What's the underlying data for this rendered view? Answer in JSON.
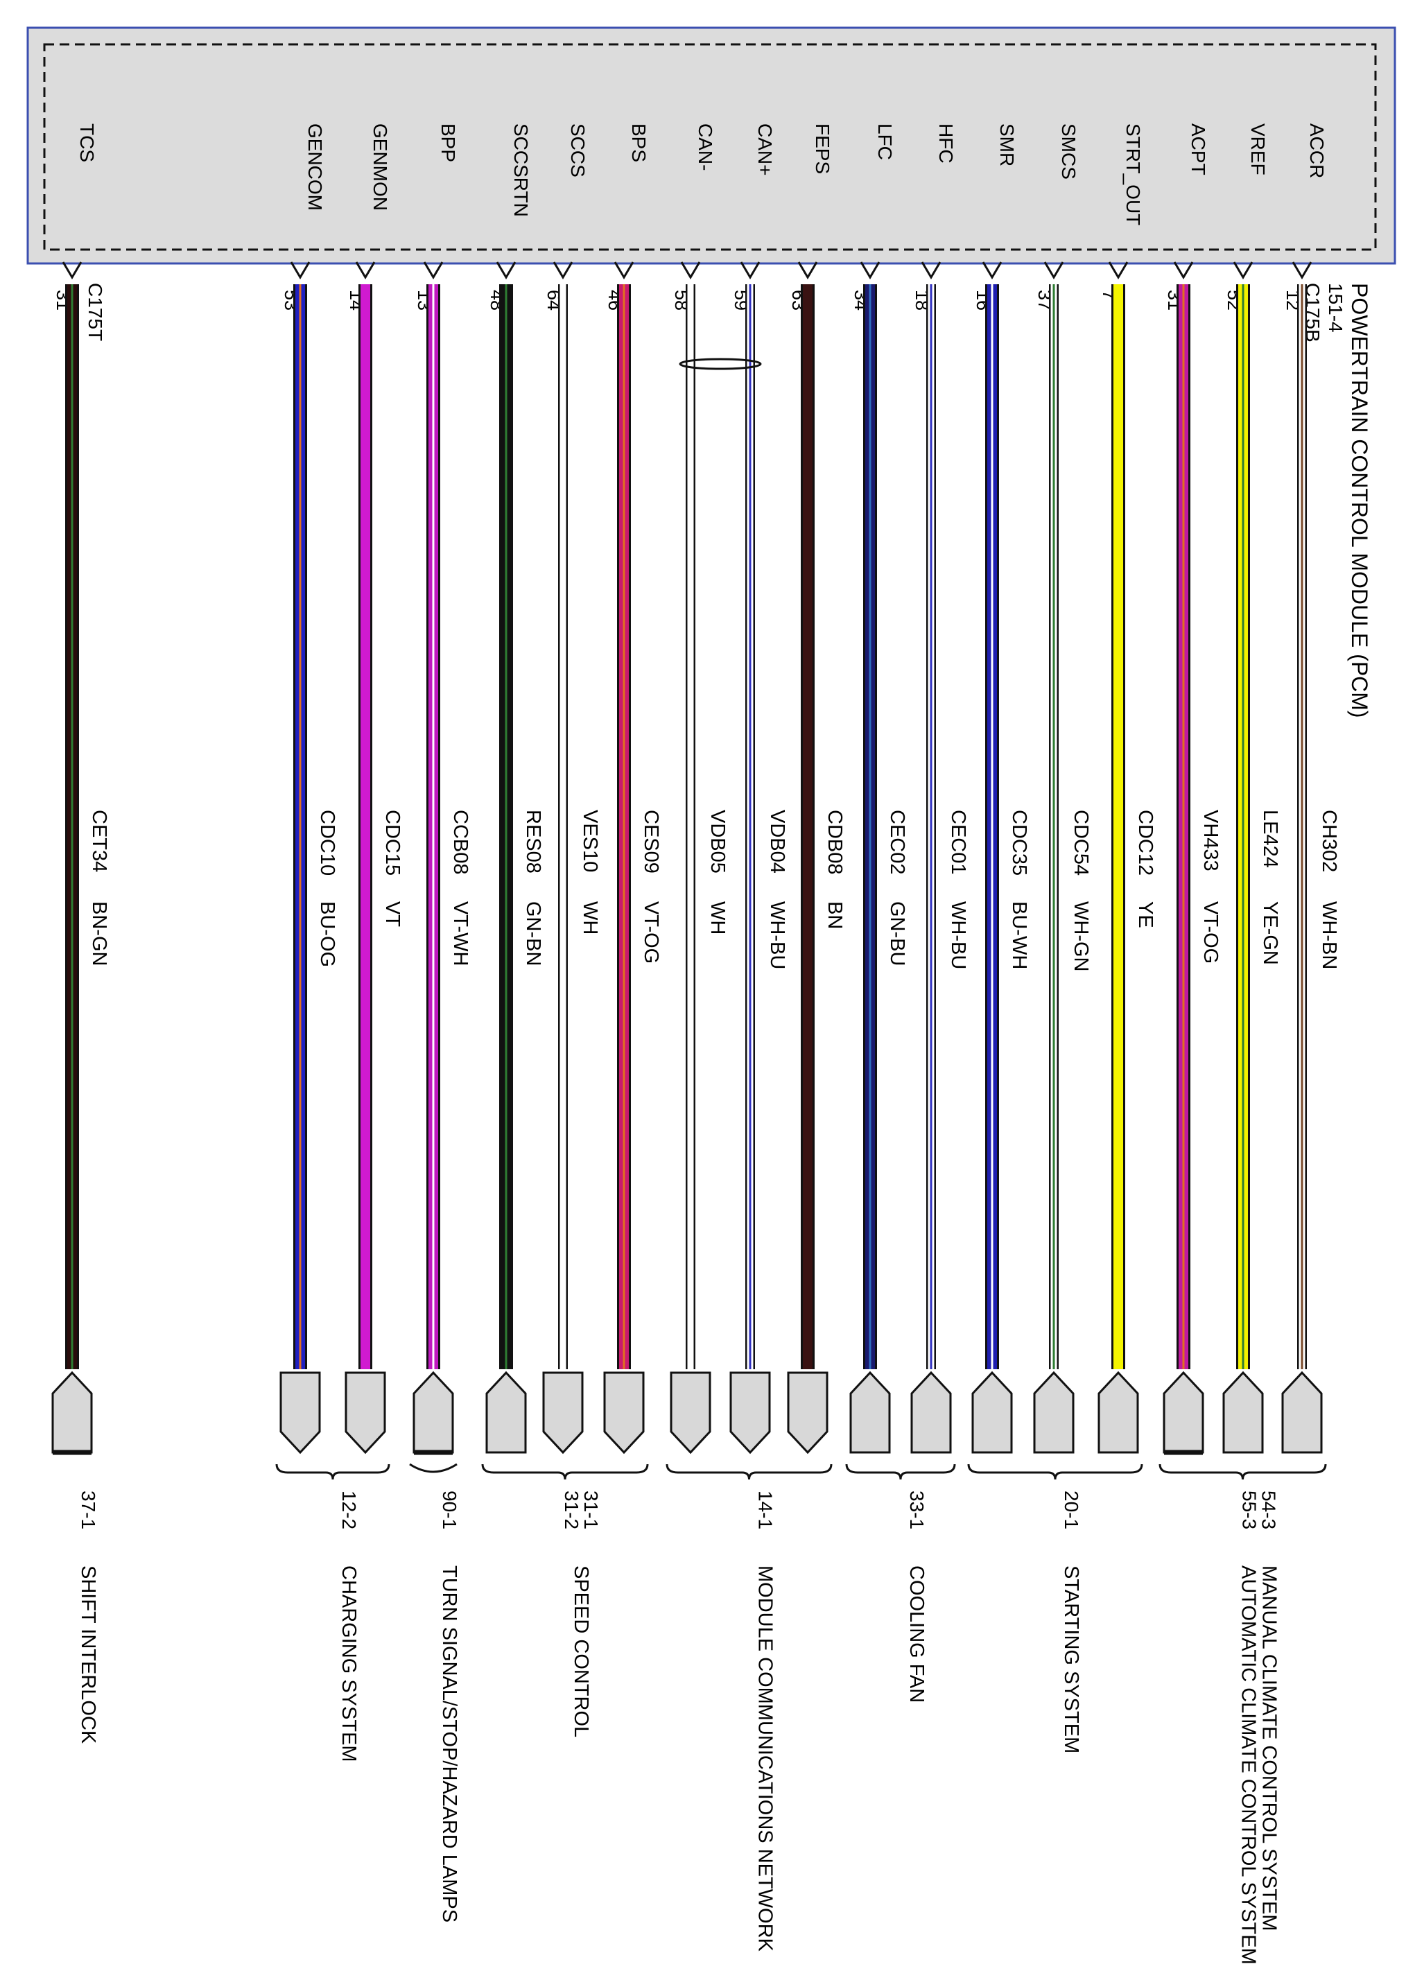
{
  "module": {
    "lines": [
      "POWERTRAIN CONTROL MODULE (PCM)",
      "151-4",
      "C175B"
    ],
    "left_connector": "C175T"
  },
  "wires": [
    {
      "pin": "ACCR",
      "pin_no": "12",
      "circuit": "CH302",
      "color_code": "WH-BN",
      "stroke": "#ffffff",
      "stripe": "#7a4a2a",
      "connector_style": "point"
    },
    {
      "pin": "VREF",
      "pin_no": "52",
      "circuit": "LE424",
      "color_code": "YE-GN",
      "stroke": "#f2f200",
      "stripe": "#2e7d32",
      "connector_style": "point"
    },
    {
      "pin": "ACPT",
      "pin_no": "31",
      "circuit": "VH433",
      "color_code": "VT-OG",
      "stroke": "#c01aa0",
      "stripe": "#e07020",
      "connector_style": "bar"
    },
    {
      "pin": "STRT_OUT",
      "pin_no": "7",
      "circuit": "CDC12",
      "color_code": "YE",
      "stroke": "#f5f500",
      "stripe": null,
      "connector_style": "point"
    },
    {
      "pin": "SMCS",
      "pin_no": "37",
      "circuit": "CDC54",
      "color_code": "WH-GN",
      "stroke": "#ffffff",
      "stripe": "#2e7d32",
      "connector_style": "point"
    },
    {
      "pin": "SMR",
      "pin_no": "16",
      "circuit": "CDC35",
      "color_code": "BU-WH",
      "stroke": "#1f1fb0",
      "stripe": "#ffffff",
      "connector_style": "point"
    },
    {
      "pin": "HFC",
      "pin_no": "18",
      "circuit": "CEC01",
      "color_code": "WH-BU",
      "stroke": "#ffffff",
      "stripe": "#3030c0",
      "connector_style": "point"
    },
    {
      "pin": "LFC",
      "pin_no": "34",
      "circuit": "CEC02",
      "color_code": "GN-BU",
      "stroke": "#1a1a6e",
      "stripe": "#2f6fbf",
      "connector_style": "point"
    },
    {
      "pin": "FEPS",
      "pin_no": "63",
      "circuit": "CDB08",
      "color_code": "BN",
      "stroke": "#3a1212",
      "stripe": null,
      "connector_style": "arrow"
    },
    {
      "pin": "CAN+",
      "pin_no": "59",
      "circuit": "VDB04",
      "color_code": "WH-BU",
      "stroke": "#ffffff",
      "stripe": "#3030c0",
      "connector_style": "arrow"
    },
    {
      "pin": "CAN-",
      "pin_no": "58",
      "circuit": "VDB05",
      "color_code": "WH",
      "stroke": "#ffffff",
      "stripe": null,
      "connector_style": "arrow"
    },
    {
      "pin": "BPS",
      "pin_no": "46",
      "circuit": "CES09",
      "color_code": "VT-OG",
      "stroke": "#c81a6e",
      "stripe": "#e07020",
      "connector_style": "arrow"
    },
    {
      "pin": "SCCS",
      "pin_no": "64",
      "circuit": "VES10",
      "color_code": "WH",
      "stroke": "#ffffff",
      "stripe": null,
      "connector_style": "arrow"
    },
    {
      "pin": "SCCSRTN",
      "pin_no": "48",
      "circuit": "RES08",
      "color_code": "GN-BN",
      "stroke": "#111111",
      "stripe": "#2e7d32",
      "connector_style": "point"
    },
    {
      "pin": "BPP",
      "pin_no": "13",
      "circuit": "CCB08",
      "color_code": "VT-WH",
      "stroke": "#c01ac0",
      "stripe": "#ffffff",
      "connector_style": "point-bar"
    },
    {
      "pin": "GENMON",
      "pin_no": "14",
      "circuit": "CDC15",
      "color_code": "VT",
      "stroke": "#d01ad0",
      "stripe": null,
      "connector_style": "arrow"
    },
    {
      "pin": "GENCOM",
      "pin_no": "53",
      "circuit": "CDC10",
      "color_code": "BU-OG",
      "stroke": "#2020c0",
      "stripe": "#e07020",
      "connector_style": "arrow"
    },
    {
      "pin": "TCS",
      "pin_no": "31",
      "circuit": "CET34",
      "color_code": "BN-GN",
      "stroke": "#2a0c0c",
      "stripe": "#2e7d32",
      "connector_style": "point-bar"
    }
  ],
  "groups": [
    {
      "refs": [
        "54-3",
        "55-3"
      ],
      "systems": [
        "MANUAL CLIMATE CONTROL SYSTEM",
        "AUTOMATIC CLIMATE CONTROL SYSTEM"
      ]
    },
    {
      "refs": [
        "20-1"
      ],
      "systems": [
        "STARTING SYSTEM"
      ]
    },
    {
      "refs": [
        "33-1"
      ],
      "systems": [
        "COOLING FAN"
      ]
    },
    {
      "refs": [
        "14-1"
      ],
      "systems": [
        "MODULE COMMUNICATIONS NETWORK"
      ]
    },
    {
      "refs": [
        "31-1",
        "31-2"
      ],
      "systems": [
        "SPEED CONTROL"
      ]
    },
    {
      "refs": [
        "90-1"
      ],
      "systems": [
        "TURN SIGNAL/STOP/HAZARD LAMPS"
      ]
    },
    {
      "refs": [
        "12-2"
      ],
      "systems": [
        "CHARGING SYSTEM"
      ]
    },
    {
      "refs": [
        "37-1"
      ],
      "systems": [
        "SHIFT INTERLOCK"
      ]
    }
  ],
  "colors": {
    "module_fill": "#dcdcdc",
    "module_border": "#3b4fb0",
    "connector_fill": "#d8d8d8"
  }
}
